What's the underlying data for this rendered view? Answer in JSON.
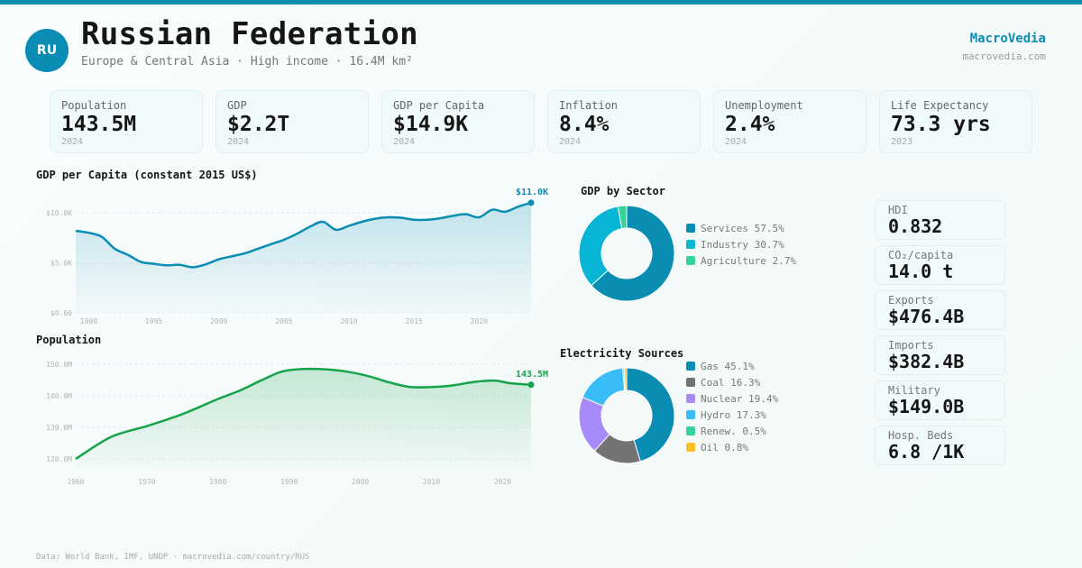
{
  "header": {
    "country_code": "RU",
    "title": "Russian Federation",
    "subtitle": "Europe & Central Asia · High income · 16.4M km²",
    "brand": "MacroVedia",
    "brand_url": "macrovedia.com"
  },
  "colors": {
    "accent": "#0a8db3",
    "population_line": "#16a34a"
  },
  "kpis": [
    {
      "label": "Population",
      "value": "143.5M",
      "year": "2024"
    },
    {
      "label": "GDP",
      "value": "$2.2T",
      "year": "2024"
    },
    {
      "label": "GDP per Capita",
      "value": "$14.9K",
      "year": "2024"
    },
    {
      "label": "Inflation",
      "value": "8.4%",
      "year": "2024"
    },
    {
      "label": "Unemployment",
      "value": "2.4%",
      "year": "2024"
    },
    {
      "label": "Life Expectancy",
      "value": "73.3 yrs",
      "year": "2023"
    }
  ],
  "side_stats": [
    {
      "label": "HDI",
      "value": "0.832"
    },
    {
      "label": "CO₂/capita",
      "value": "14.0 t"
    },
    {
      "label": "Exports",
      "value": "$476.4B"
    },
    {
      "label": "Imports",
      "value": "$382.4B"
    },
    {
      "label": "Military",
      "value": "$149.0B"
    },
    {
      "label": "Hosp. Beds",
      "value": "6.8 /1K"
    }
  ],
  "footer": "Data: World Bank, IMF, UNDP · macrovedia.com/country/RUS",
  "chart_data": [
    {
      "type": "area",
      "title": "GDP per Capita (constant 2015 US$)",
      "xlabel": "",
      "ylabel": "",
      "ylim": [
        0,
        10000
      ],
      "yticks": [
        "$0.00",
        "$5.0K",
        "$10.0K"
      ],
      "ytick_values": [
        0,
        5000,
        10000
      ],
      "xticks": [
        "1990",
        "1995",
        "2000",
        "2005",
        "2010",
        "2015",
        "2020"
      ],
      "xtick_values": [
        1990,
        1995,
        2000,
        2005,
        2010,
        2015,
        2020
      ],
      "xlim": [
        1989,
        2024
      ],
      "grid": true,
      "end_label": "$11.0K",
      "x": [
        1989,
        1990,
        1991,
        1992,
        1993,
        1994,
        1995,
        1996,
        1997,
        1998,
        1999,
        2000,
        2001,
        2002,
        2003,
        2004,
        2005,
        2006,
        2007,
        2008,
        2009,
        2010,
        2011,
        2012,
        2013,
        2014,
        2015,
        2016,
        2017,
        2018,
        2019,
        2020,
        2021,
        2022,
        2023,
        2024
      ],
      "values": [
        8200,
        8000,
        7600,
        6400,
        5800,
        5100,
        4900,
        4750,
        4800,
        4550,
        4850,
        5350,
        5650,
        5950,
        6400,
        6850,
        7300,
        7900,
        8600,
        9100,
        8300,
        8700,
        9100,
        9400,
        9550,
        9500,
        9300,
        9300,
        9450,
        9700,
        9850,
        9550,
        10300,
        10100,
        10600,
        11000
      ]
    },
    {
      "type": "area",
      "title": "Population",
      "xlabel": "",
      "ylabel": "",
      "ylim": [
        117,
        152
      ],
      "yticks": [
        "120.0M",
        "130.0M",
        "140.0M",
        "150.0M"
      ],
      "ytick_values": [
        120,
        130,
        140,
        150
      ],
      "xticks": [
        "1960",
        "1970",
        "1980",
        "1990",
        "2000",
        "2010",
        "2020"
      ],
      "xtick_values": [
        1960,
        1970,
        1980,
        1990,
        2000,
        2010,
        2020
      ],
      "xlim": [
        1960,
        2024
      ],
      "grid": true,
      "end_label": "143.5M",
      "x": [
        1960,
        1965,
        1970,
        1975,
        1980,
        1983,
        1986,
        1989,
        1992,
        1995,
        1998,
        2001,
        2004,
        2007,
        2010,
        2013,
        2016,
        2019,
        2021,
        2024
      ],
      "values": [
        120.0,
        127.0,
        130.4,
        134.2,
        139.0,
        141.6,
        144.8,
        147.7,
        148.5,
        148.4,
        147.7,
        146.3,
        144.3,
        142.8,
        142.8,
        143.3,
        144.4,
        144.8,
        144.0,
        143.5
      ]
    },
    {
      "type": "pie",
      "title": "GDP by Sector",
      "categories": [
        "Services",
        "Industry",
        "Agriculture"
      ],
      "values": [
        57.5,
        30.7,
        2.7
      ],
      "labels": [
        "Services 57.5%",
        "Industry 30.7%",
        "Agriculture 2.7%"
      ],
      "colors": [
        "#0a8db3",
        "#06b6d4",
        "#34d399"
      ],
      "legend": "right"
    },
    {
      "type": "pie",
      "title": "Electricity Sources",
      "categories": [
        "Gas",
        "Coal",
        "Nuclear",
        "Hydro",
        "Renew.",
        "Oil"
      ],
      "values": [
        45.1,
        16.3,
        19.4,
        17.3,
        0.5,
        0.8
      ],
      "labels": [
        "Gas 45.1%",
        "Coal 16.3%",
        "Nuclear 19.4%",
        "Hydro 17.3%",
        "Renew. 0.5%",
        "Oil 0.8%"
      ],
      "colors": [
        "#0a8db3",
        "#737373",
        "#a78bfa",
        "#38bdf8",
        "#34d399",
        "#fbbf24"
      ],
      "legend": "right"
    }
  ]
}
